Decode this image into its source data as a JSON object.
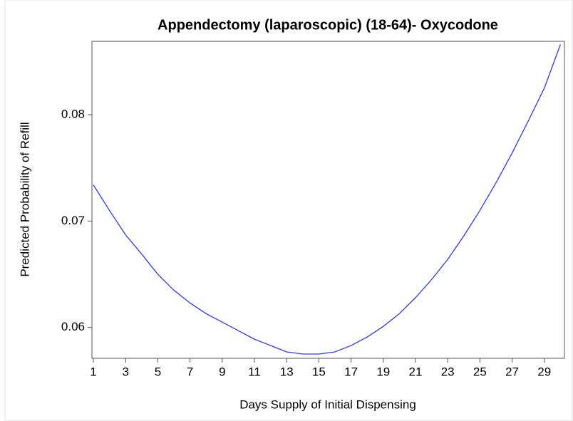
{
  "chart_data": {
    "type": "line",
    "title": "Appendectomy (laparoscopic) (18-64)- Oxycodone",
    "x_label": "Days Supply of Initial Dispensing",
    "y_label": "Predicted Probability of Refill",
    "x": [
      1,
      2,
      3,
      4,
      5,
      6,
      7,
      8,
      9,
      10,
      11,
      12,
      13,
      14,
      15,
      16,
      17,
      18,
      19,
      20,
      21,
      22,
      23,
      24,
      25,
      26,
      27,
      28,
      29,
      30
    ],
    "series": [
      {
        "name": "Oxycodone",
        "color": "#3333ff",
        "values": [
          0.0734,
          0.071,
          0.0687,
          0.0669,
          0.065,
          0.0635,
          0.0623,
          0.0613,
          0.0605,
          0.0597,
          0.0589,
          0.0583,
          0.0577,
          0.0575,
          0.0575,
          0.0577,
          0.0583,
          0.0591,
          0.0601,
          0.0613,
          0.0628,
          0.0645,
          0.0664,
          0.0686,
          0.071,
          0.0736,
          0.0764,
          0.0794,
          0.0825,
          0.0866
        ]
      }
    ],
    "xlim": [
      0.91,
      30.25
    ],
    "ylim": [
      0.0571,
      0.0869
    ],
    "xticks": [
      1,
      3,
      5,
      7,
      9,
      11,
      13,
      15,
      17,
      19,
      21,
      23,
      25,
      27,
      29
    ],
    "yticks": [
      0.06,
      0.07,
      0.08
    ],
    "grid": false
  }
}
